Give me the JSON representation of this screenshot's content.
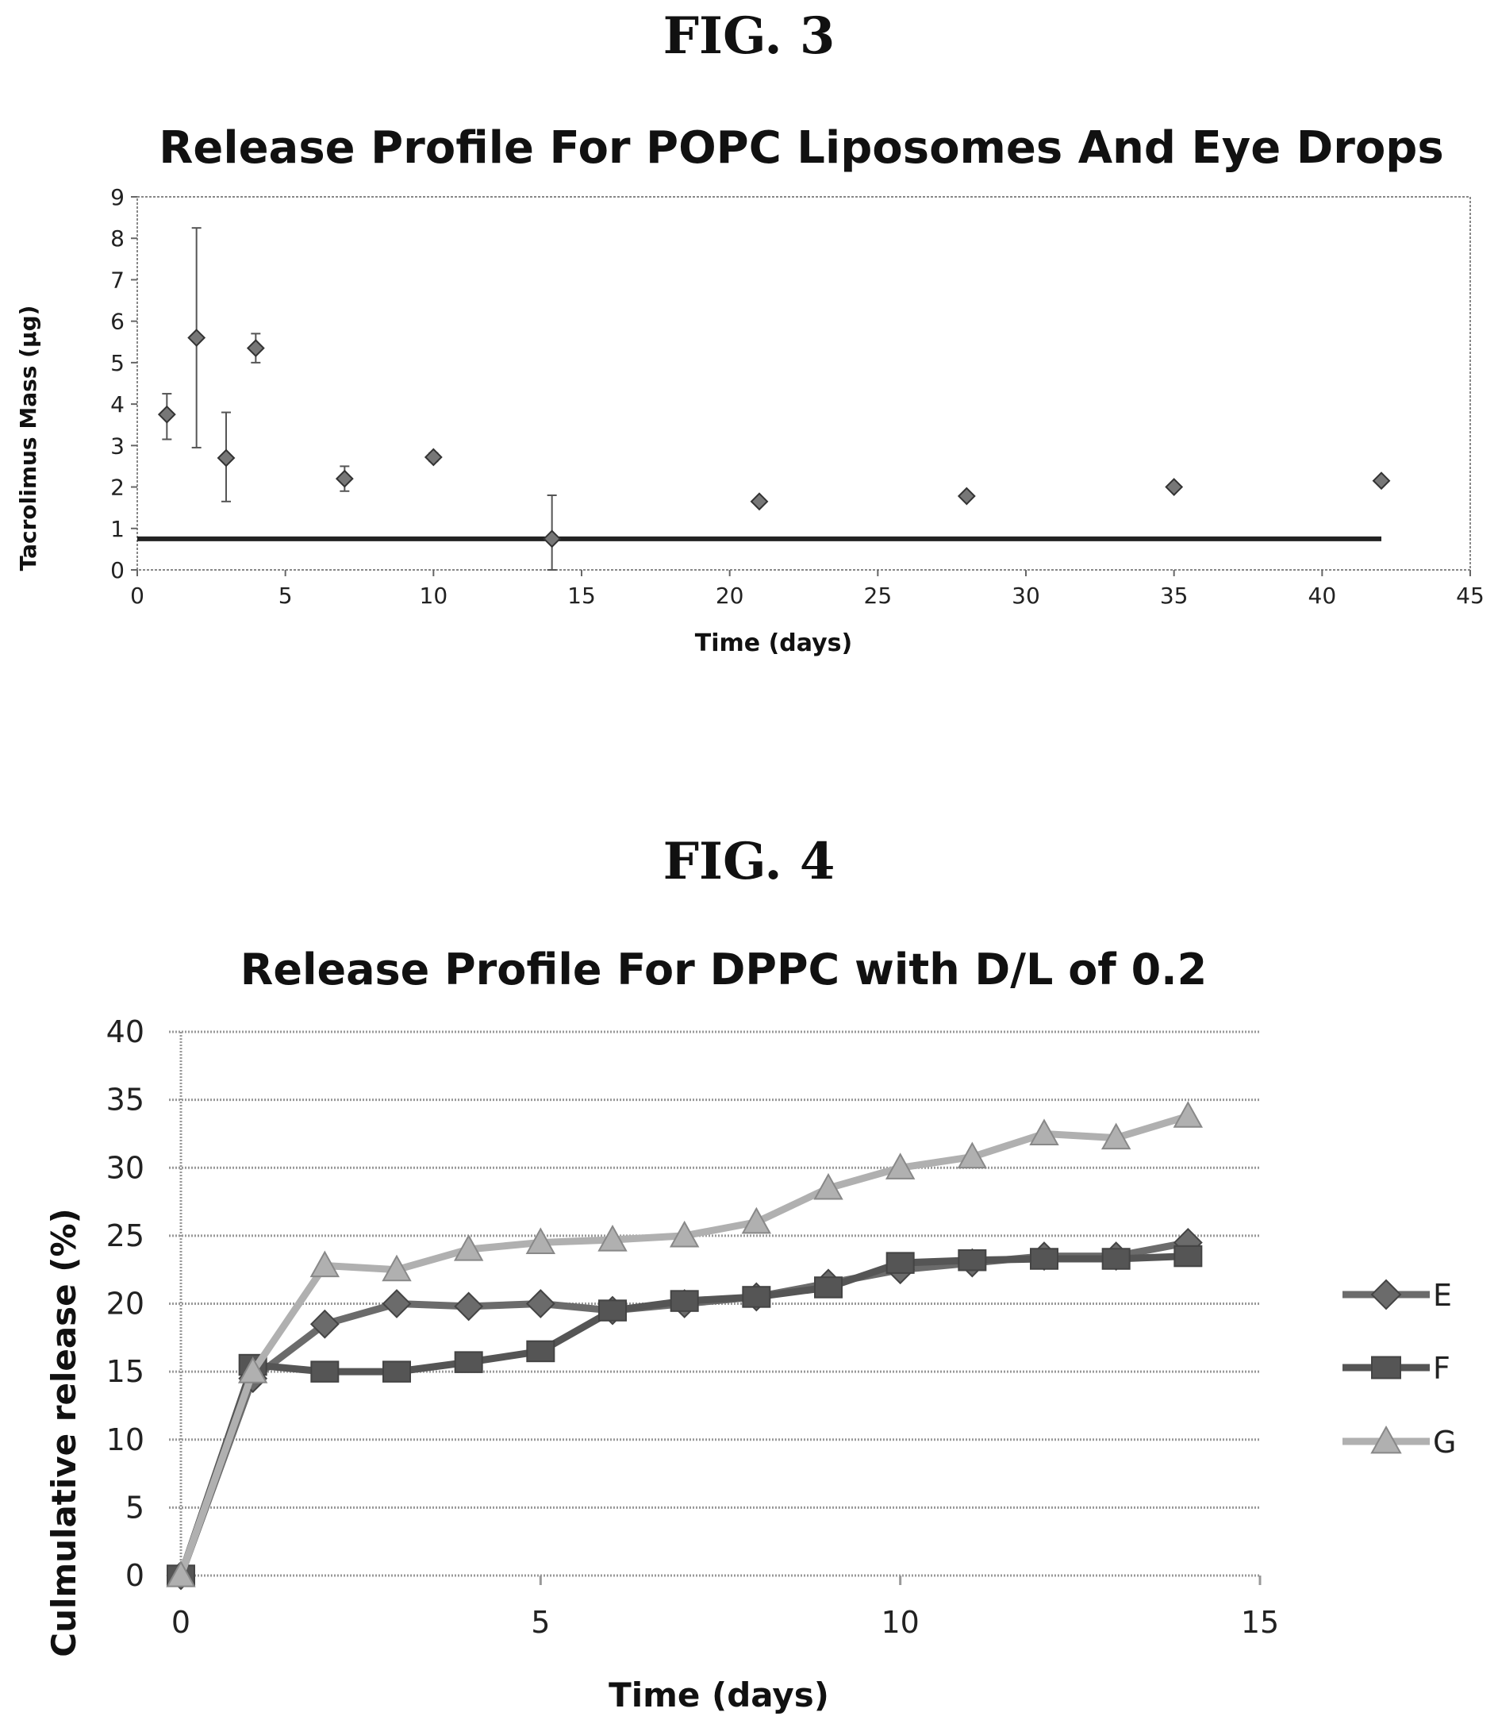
{
  "figures": {
    "fig3_label": "FIG. 3",
    "fig4_label": "FIG. 4"
  },
  "chart_data": [
    {
      "type": "scatter",
      "title": "Release Profile For POPC Liposomes And Eye Drops",
      "xlabel": "Time (days)",
      "ylabel": "Tacrolimus Mass (µg)",
      "xlim": [
        0,
        45
      ],
      "ylim": [
        0,
        9
      ],
      "x_ticks": [
        0,
        5,
        10,
        15,
        20,
        25,
        30,
        35,
        40,
        45
      ],
      "y_ticks": [
        0,
        1,
        2,
        3,
        4,
        5,
        6,
        7,
        8,
        9
      ],
      "grid": false,
      "series": [
        {
          "marker": "diamond",
          "points": [
            {
              "x": 1,
              "y": 3.75,
              "err_low": 3.15,
              "err_high": 4.25
            },
            {
              "x": 2,
              "y": 5.6,
              "err_low": 2.95,
              "err_high": 8.25
            },
            {
              "x": 3,
              "y": 2.7,
              "err_low": 1.65,
              "err_high": 3.8
            },
            {
              "x": 4,
              "y": 5.35,
              "err_low": 5.0,
              "err_high": 5.7
            },
            {
              "x": 7,
              "y": 2.2,
              "err_low": 1.9,
              "err_high": 2.5
            },
            {
              "x": 10,
              "y": 2.72,
              "err_low": 2.62,
              "err_high": 2.82
            },
            {
              "x": 14,
              "y": 0.75,
              "err_low": 0.0,
              "err_high": 1.8
            },
            {
              "x": 21,
              "y": 1.65,
              "err_low": 1.65,
              "err_high": 1.65
            },
            {
              "x": 28,
              "y": 1.78,
              "err_low": 1.78,
              "err_high": 1.78
            },
            {
              "x": 35,
              "y": 2.0,
              "err_low": 2.0,
              "err_high": 2.0
            },
            {
              "x": 42,
              "y": 2.15,
              "err_low": 2.15,
              "err_high": 2.15
            }
          ]
        },
        {
          "marker": "line",
          "x": [
            0,
            42
          ],
          "y": [
            0.75,
            0.75
          ]
        }
      ]
    },
    {
      "type": "line",
      "title": "Release Profile For DPPC with D/L of 0.2",
      "xlabel": "Time (days)",
      "ylabel": "Culmulative release (%)",
      "xlim": [
        0,
        15
      ],
      "ylim": [
        0,
        40
      ],
      "x_ticks": [
        0,
        5,
        10,
        15
      ],
      "y_ticks": [
        0,
        5,
        10,
        15,
        20,
        25,
        30,
        35,
        40
      ],
      "grid": true,
      "legend": "right",
      "x": [
        0,
        1,
        2,
        3,
        4,
        5,
        6,
        7,
        8,
        9,
        10,
        11,
        12,
        13,
        14
      ],
      "series": [
        {
          "name": "E",
          "marker": "diamond",
          "color": "#6b6b6b",
          "values": [
            0,
            14.5,
            18.5,
            20,
            19.8,
            20,
            19.5,
            20,
            20.5,
            21.5,
            22.5,
            23,
            23.5,
            23.5,
            24.5
          ]
        },
        {
          "name": "F",
          "marker": "square",
          "color": "#555555",
          "values": [
            0,
            15.5,
            15,
            15,
            15.7,
            16.5,
            19.5,
            20.2,
            20.5,
            21.2,
            23,
            23.2,
            23.3,
            23.3,
            23.5
          ]
        },
        {
          "name": "G",
          "marker": "triangle",
          "color": "#b0b0b0",
          "values": [
            0,
            15,
            22.8,
            22.5,
            24,
            24.5,
            24.7,
            25,
            26,
            28.5,
            30,
            30.8,
            32.5,
            32.2,
            33.8
          ]
        }
      ]
    }
  ]
}
